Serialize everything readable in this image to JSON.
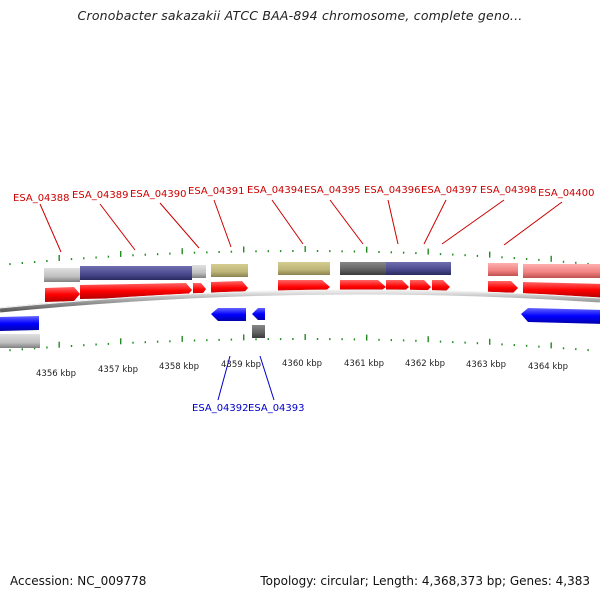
{
  "header": {
    "title": "Cronobacter sakazakii ATCC BAA-894 chromosome, complete geno..."
  },
  "footer": {
    "accession": "Accession: NC_009778",
    "summary": "Topology: circular; Length: 4,368,373 bp; Genes: 4,383"
  },
  "colors": {
    "forward_cds": "#ff0000",
    "reverse_cds": "#0000ff",
    "forward_label": "#cc0000",
    "reverse_label": "#0000cc",
    "tick": "#228b22",
    "backbone": "#888888"
  },
  "genes_top": [
    {
      "id": "ESA_04388"
    },
    {
      "id": "ESA_04389"
    },
    {
      "id": "ESA_04390"
    },
    {
      "id": "ESA_04391"
    },
    {
      "id": "ESA_04394"
    },
    {
      "id": "ESA_04395"
    },
    {
      "id": "ESA_04396"
    },
    {
      "id": "ESA_04397"
    },
    {
      "id": "ESA_04398"
    },
    {
      "id": "ESA_04400"
    }
  ],
  "genes_bottom": [
    {
      "id": "ESA_04392"
    },
    {
      "id": "ESA_04393"
    }
  ],
  "scale_labels": [
    "4356 kbp",
    "4357 kbp",
    "4358 kbp",
    "4359 kbp",
    "4360 kbp",
    "4361 kbp",
    "4362 kbp",
    "4363 kbp",
    "4364 kbp"
  ]
}
